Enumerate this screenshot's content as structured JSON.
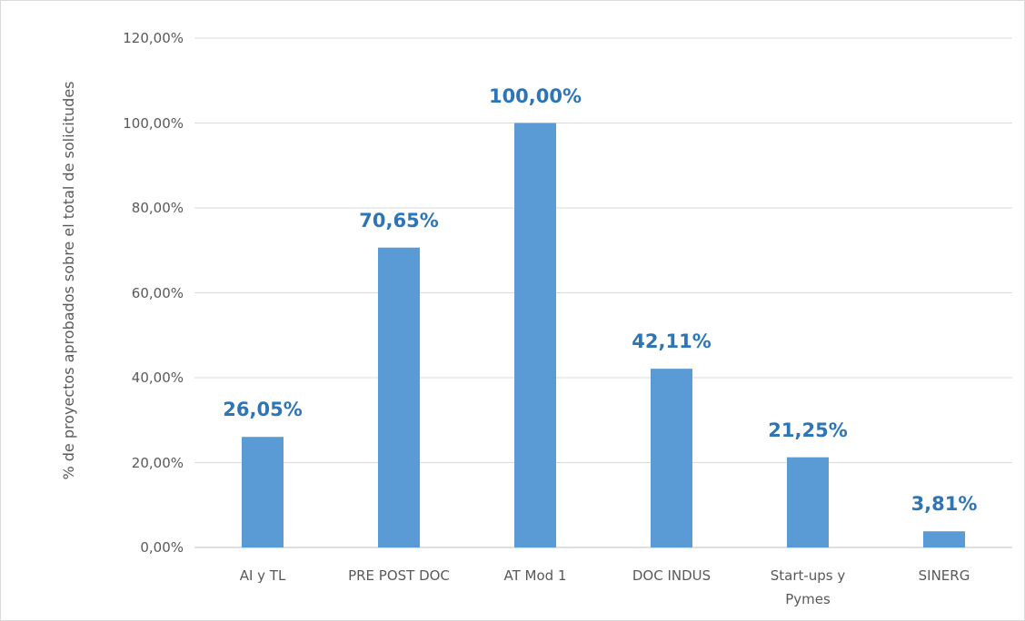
{
  "chart_data": {
    "type": "bar",
    "y_axis_label": "% de proyectos aprobados sobre el total de solicitudes",
    "categories": [
      "AI y TL",
      "PRE POST DOC",
      "AT Mod 1",
      "DOC INDUS",
      "Start-ups y Pymes",
      "SINERG"
    ],
    "values": [
      26.05,
      70.65,
      100,
      42.11,
      21.25,
      3.81
    ],
    "value_labels": [
      "26,05%",
      "70,65%",
      "100,00%",
      "42,11%",
      "21,25%",
      "3,81%"
    ],
    "color": "#5b9bd5",
    "label_color": "#2e75b6",
    "ylim": [
      0,
      120
    ],
    "yticks": [
      {
        "value": 0,
        "label": "0,00%"
      },
      {
        "value": 20,
        "label": "20,00%"
      },
      {
        "value": 40,
        "label": "40,00%"
      },
      {
        "value": 60,
        "label": "60,00%"
      },
      {
        "value": 80,
        "label": "80,00%"
      },
      {
        "value": 100,
        "label": "100,00%"
      },
      {
        "value": 120,
        "label": "120,00%"
      }
    ],
    "grid": true
  }
}
